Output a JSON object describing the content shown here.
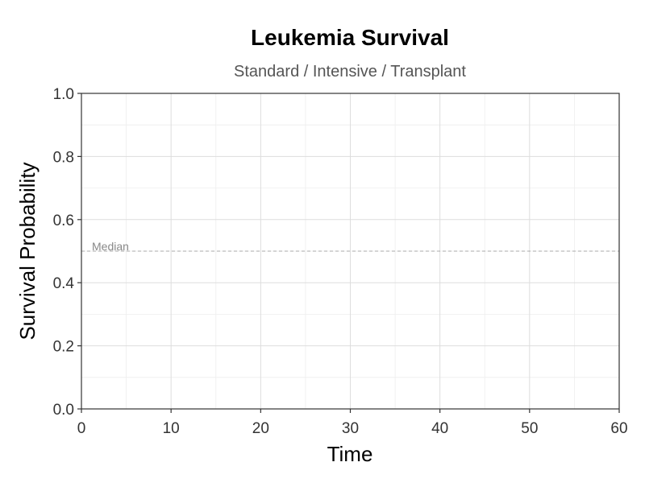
{
  "chart_data": {
    "type": "line",
    "title": "Leukemia Survival",
    "subtitle": "Standard / Intensive / Transplant",
    "xlabel": "Time",
    "ylabel": "Survival Probability",
    "xlim": [
      0,
      60
    ],
    "ylim": [
      0,
      1
    ],
    "x_ticks": [
      0,
      10,
      20,
      30,
      40,
      50,
      60
    ],
    "x_tick_labels": [
      "0",
      "10",
      "20",
      "30",
      "40",
      "50",
      "60"
    ],
    "y_ticks": [
      0,
      0.2,
      0.4,
      0.6,
      0.8,
      1.0
    ],
    "y_tick_labels": [
      "0.0",
      "0.2",
      "0.4",
      "0.6",
      "0.8",
      "1.0"
    ],
    "x_minor_ticks": [
      5,
      15,
      25,
      35,
      45,
      55
    ],
    "y_minor_ticks": [
      0.1,
      0.3,
      0.5,
      0.7,
      0.9
    ],
    "grid": true,
    "series": [],
    "reference_lines": [
      {
        "axis": "y",
        "value": 0.5,
        "label": "Median",
        "style": "dashed",
        "color": "#aaaaaa"
      }
    ],
    "colors": {
      "grid_major": "#dddddd",
      "grid_minor": "#eeeeee",
      "axis": "#333333",
      "panel_border": "#333333"
    }
  }
}
